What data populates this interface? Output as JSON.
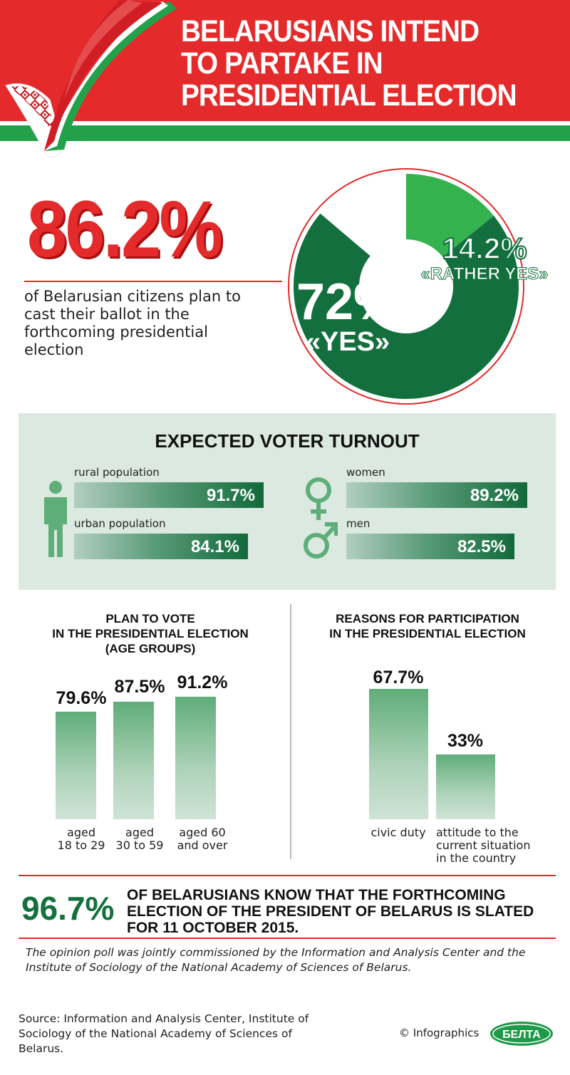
{
  "header": {
    "title_lines": [
      "BELARUSIANS INTEND",
      "TO PARTAKE IN",
      "PRESIDENTIAL ELECTION"
    ],
    "colors": {
      "red": "#e42a2a",
      "green": "#23a14a"
    }
  },
  "summary": {
    "total_percent": "86.2%",
    "description": "of Belarusian citizens plan to cast their ballot in the forthcoming presidential election",
    "yes_label": "72%",
    "yes_caption": "«YES»",
    "rather_yes_label": "14.2%",
    "rather_yes_caption": "«RATHER YES»"
  },
  "turnout": {
    "title": "EXPECTED VOTER TURNOUT",
    "rural": {
      "label": "rural population",
      "value": "91.7%"
    },
    "urban": {
      "label": "urban population",
      "value": "84.1%"
    },
    "women": {
      "label": "women",
      "value": "89.2%"
    },
    "men": {
      "label": "men",
      "value": "82.5%"
    },
    "icons": [
      "person-icon",
      "female-symbol-icon",
      "male-symbol-icon"
    ]
  },
  "age_groups": {
    "title_lines": [
      "PLAN TO VOTE",
      "IN THE PRESIDENTIAL ELECTION",
      "(AGE GROUPS)"
    ],
    "bars": [
      {
        "value_label": "79.6%",
        "label_lines": [
          "aged",
          "18 to 29"
        ]
      },
      {
        "value_label": "87.5%",
        "label_lines": [
          "aged",
          "30 to 59"
        ]
      },
      {
        "value_label": "91.2%",
        "label_lines": [
          "aged 60",
          "and over"
        ]
      }
    ]
  },
  "reasons": {
    "title_lines": [
      "REASONS FOR PARTICIPATION",
      "IN THE PRESIDENTIAL ELECTION"
    ],
    "bars": [
      {
        "value_label": "67.7%",
        "label_lines": [
          "civic duty"
        ]
      },
      {
        "value_label": "33%",
        "label_lines": [
          "attitude to the",
          "current situation",
          "in the country"
        ]
      }
    ]
  },
  "awareness": {
    "percent": "96.7%",
    "text": "OF BELARUSIANS KNOW THAT THE FORTHCOMING ELECTION OF THE PRESIDENT OF BELARUS IS SLATED FOR 11 OCTOBER 2015."
  },
  "poll_note": "The opinion poll was jointly commissioned by the Information and Analysis Center and the Institute of Sociology of the National Academy of Sciences of Belarus.",
  "source": "Source: Information and Analysis Center, Institute of Sociology of the National Academy of Sciences of Belarus.",
  "copyright": "© Infographics",
  "logo_text": "БЕЛТА",
  "chart_data": [
    {
      "type": "pie",
      "labels": [
        "«YES»",
        "«RATHER YES»"
      ],
      "values": [
        72,
        14.2
      ]
    },
    {
      "type": "bar",
      "title": "EXPECTED VOTER TURNOUT",
      "categories": [
        "rural population",
        "urban population",
        "women",
        "men"
      ],
      "values": [
        91.7,
        84.1,
        89.2,
        82.5
      ]
    },
    {
      "type": "bar",
      "title": "PLAN TO VOTE IN THE PRESIDENTIAL ELECTION (AGE GROUPS)",
      "categories": [
        "aged 18 to 29",
        "aged 30 to 59",
        "aged 60 and over"
      ],
      "values": [
        79.6,
        87.5,
        91.2
      ]
    },
    {
      "type": "bar",
      "title": "REASONS FOR PARTICIPATION IN THE PRESIDENTIAL ELECTION",
      "categories": [
        "civic duty",
        "attitude to the current situation in the country"
      ],
      "values": [
        67.7,
        33
      ]
    }
  ]
}
